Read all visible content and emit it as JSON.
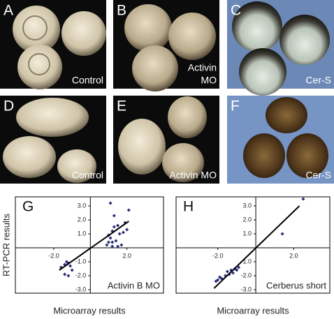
{
  "panels": [
    {
      "letter": "A",
      "caption": [
        "Control"
      ]
    },
    {
      "letter": "B",
      "caption": [
        "Activin",
        "MO"
      ]
    },
    {
      "letter": "C",
      "caption": [
        "Cer-S"
      ]
    },
    {
      "letter": "D",
      "caption": [
        "Control"
      ]
    },
    {
      "letter": "E",
      "caption": [
        "Activin MO"
      ]
    },
    {
      "letter": "F",
      "caption": [
        "Cer-S"
      ]
    }
  ],
  "chart_data": [
    {
      "type": "scatter",
      "label": "G",
      "annotation": "Activin B MO",
      "x_label": "Microarray results",
      "y_label": "RT-PCR results",
      "color": "#2b2d7a",
      "x": [
        -1.6,
        -1.4,
        -1.3,
        -1.2,
        -1.1,
        -1.4,
        -1.2,
        -1.0,
        1.1,
        1.3,
        1.2,
        1.0,
        1.1,
        1.4,
        1.0,
        1.2,
        1.5,
        1.7,
        1.6,
        1.8,
        1.9,
        2.1,
        2.0,
        1.3,
        1.5,
        1.2,
        0.9
      ],
      "values": [
        -1.4,
        -1.2,
        -1.0,
        -1.1,
        -1.3,
        -1.9,
        -2.0,
        -1.6,
        3.2,
        1.5,
        1.2,
        0.9,
        0.7,
        0.5,
        0.4,
        0.1,
        0.1,
        0.2,
        1.0,
        1.1,
        1.8,
        2.7,
        1.3,
        2.3,
        1.6,
        0.4,
        0.2
      ],
      "trend_line": {
        "x": [
          -1.7,
          2.1
        ],
        "y": [
          -1.6,
          1.9
        ]
      },
      "xlim": [
        -4.1,
        4.0
      ],
      "ylim": [
        -3.25,
        3.65
      ],
      "xticks": [
        {
          "value": -2,
          "label": "-2.0"
        },
        {
          "value": 2,
          "label": "2.0"
        }
      ],
      "yticks": [
        {
          "value": 3,
          "label": "3.0"
        },
        {
          "value": 2,
          "label": "2.0"
        },
        {
          "value": 1,
          "label": "1.0"
        },
        {
          "value": -1,
          "label": "-1.0"
        },
        {
          "value": -2,
          "label": "-2.0"
        },
        {
          "value": -3,
          "label": "-3.0"
        }
      ]
    },
    {
      "type": "scatter",
      "label": "H",
      "annotation": "Cerberus short",
      "x_label": "Microarray results",
      "color": "#2b2d7a",
      "x": [
        -2.1,
        -2.0,
        -1.8,
        -1.6,
        -1.5,
        -1.3,
        -1.2,
        -1.1,
        -1.0,
        -0.9,
        -1.4,
        -1.9,
        2.5,
        1.4
      ],
      "values": [
        -2.4,
        -2.3,
        -2.2,
        -2.0,
        -1.7,
        -1.6,
        -1.8,
        -1.5,
        -1.6,
        -1.4,
        -1.9,
        -2.1,
        3.5,
        1.0
      ],
      "trend_line": {
        "x": [
          -2.2,
          2.3
        ],
        "y": [
          -2.9,
          3.0
        ]
      },
      "xlim": [
        -4.2,
        3.9
      ],
      "ylim": [
        -3.25,
        3.65
      ],
      "xticks": [
        {
          "value": -2,
          "label": "-2.0"
        },
        {
          "value": 2,
          "label": "2.0"
        }
      ],
      "yticks": [
        {
          "value": 3,
          "label": "3.0"
        },
        {
          "value": 2,
          "label": "2.0"
        },
        {
          "value": 1,
          "label": "1.0"
        },
        {
          "value": -1,
          "label": "-1.0"
        },
        {
          "value": -2,
          "label": "-2.0"
        },
        {
          "value": -3,
          "label": "-3.0"
        }
      ]
    }
  ]
}
